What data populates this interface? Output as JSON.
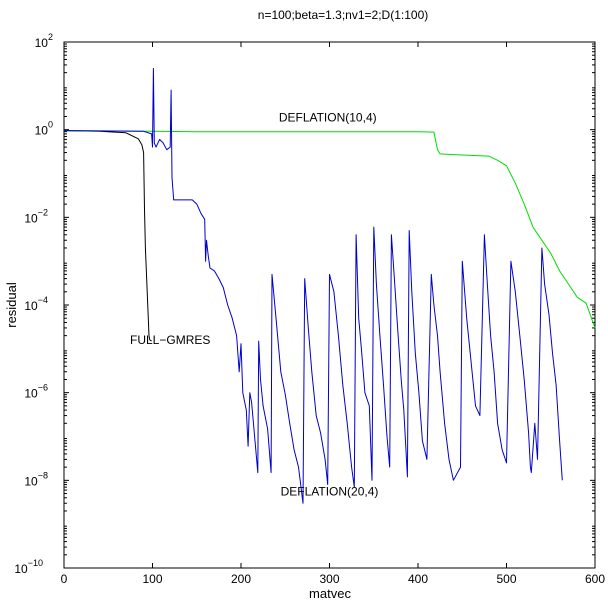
{
  "chart_data": {
    "type": "line",
    "title": "n=100;beta=1.3;nv1=2;D(1:100)",
    "xlabel": "matvec",
    "ylabel": "residual",
    "xlim": [
      0,
      600
    ],
    "ylim": [
      1e-10,
      100
    ],
    "yscale": "log",
    "grid": false,
    "x_ticks": [
      {
        "value": 0,
        "label": "0"
      },
      {
        "value": 100,
        "label": "100"
      },
      {
        "value": 200,
        "label": "200"
      },
      {
        "value": 300,
        "label": "300"
      },
      {
        "value": 400,
        "label": "400"
      },
      {
        "value": 500,
        "label": "500"
      },
      {
        "value": 600,
        "label": "600"
      }
    ],
    "y_ticks": [
      {
        "value": 100.0,
        "base": "10",
        "exp": "2"
      },
      {
        "value": 1.0,
        "base": "10",
        "exp": "0"
      },
      {
        "value": 0.01,
        "base": "10",
        "exp": "−2"
      },
      {
        "value": 0.0001,
        "base": "10",
        "exp": "−4"
      },
      {
        "value": 1e-06,
        "base": "10",
        "exp": "−6"
      },
      {
        "value": 1e-08,
        "base": "10",
        "exp": "−8"
      },
      {
        "value": 1e-10,
        "base": "10",
        "exp": "−10"
      }
    ],
    "annotations": [
      {
        "text": "DEFLATION(10,4)",
        "x": 298,
        "y": 1.9
      },
      {
        "text": "FULL−GMRES",
        "x": 120,
        "y": 1.6e-05
      },
      {
        "text": "DEFLATION(20,4)",
        "x": 300,
        "y": 5.5e-09
      }
    ],
    "series": [
      {
        "color": "#000000",
        "points": [
          [
            0,
            0.95
          ],
          [
            40,
            0.92
          ],
          [
            70,
            0.85
          ],
          [
            84,
            0.62
          ],
          [
            88,
            0.45
          ],
          [
            90,
            0.3
          ],
          [
            91,
            0.015
          ],
          [
            92,
            0.002
          ],
          [
            94,
            0.0002
          ],
          [
            96,
            2e-05
          ],
          [
            97,
            1.6e-05
          ],
          [
            99,
            1.5e-05
          ]
        ]
      },
      {
        "color": "#00dd00",
        "points": [
          [
            0,
            0.95
          ],
          [
            100,
            0.92
          ],
          [
            150,
            0.9
          ],
          [
            200,
            0.9
          ],
          [
            300,
            0.9
          ],
          [
            400,
            0.9
          ],
          [
            418,
            0.88
          ],
          [
            420,
            0.55
          ],
          [
            422,
            0.35
          ],
          [
            425,
            0.28
          ],
          [
            440,
            0.27
          ],
          [
            480,
            0.25
          ],
          [
            490,
            0.2
          ],
          [
            500,
            0.15
          ],
          [
            510,
            0.06
          ],
          [
            520,
            0.02
          ],
          [
            530,
            0.006
          ],
          [
            540,
            0.003
          ],
          [
            550,
            0.0015
          ],
          [
            560,
            0.0006
          ],
          [
            570,
            0.0003
          ],
          [
            580,
            0.00015
          ],
          [
            590,
            0.00011
          ],
          [
            600,
            3e-05
          ]
        ]
      },
      {
        "color": "#0000cc",
        "points": [
          [
            0,
            0.95
          ],
          [
            90,
            0.92
          ],
          [
            99,
            0.8
          ],
          [
            100,
            0.4
          ],
          [
            101,
            25
          ],
          [
            102,
            0.5
          ],
          [
            104,
            0.4
          ],
          [
            108,
            0.6
          ],
          [
            112,
            0.5
          ],
          [
            116,
            0.35
          ],
          [
            120,
            0.4
          ],
          [
            121,
            8
          ],
          [
            122,
            0.08
          ],
          [
            124,
            0.025
          ],
          [
            130,
            0.025
          ],
          [
            145,
            0.025
          ],
          [
            150,
            0.02
          ],
          [
            155,
            0.012
          ],
          [
            159,
            0.009
          ],
          [
            160,
            0.001
          ],
          [
            161,
            0.003
          ],
          [
            163,
            0.0013
          ],
          [
            165,
            0.0007
          ],
          [
            170,
            0.0006
          ],
          [
            175,
            0.0004
          ],
          [
            180,
            0.00025
          ],
          [
            185,
            0.0001
          ],
          [
            190,
            5e-05
          ],
          [
            195,
            2e-05
          ],
          [
            198,
            3e-06
          ],
          [
            200,
            1.3e-05
          ],
          [
            202,
            1e-06
          ],
          [
            206,
            4e-07
          ],
          [
            208,
            6e-08
          ],
          [
            210,
            1e-06
          ],
          [
            212,
            6e-07
          ],
          [
            215,
            1.2e-07
          ],
          [
            219,
            1.5e-08
          ],
          [
            220,
            1.5e-05
          ],
          [
            222,
            2e-06
          ],
          [
            225,
            5e-07
          ],
          [
            230,
            1.5e-07
          ],
          [
            234,
            1.5e-08
          ],
          [
            235,
            0.0005
          ],
          [
            240,
            4e-05
          ],
          [
            245,
            3e-06
          ],
          [
            250,
            9e-07
          ],
          [
            255,
            2e-07
          ],
          [
            260,
            5e-08
          ],
          [
            265,
            2e-08
          ],
          [
            270,
            3e-09
          ],
          [
            272,
            0.0004
          ],
          [
            276,
            3e-05
          ],
          [
            280,
            3e-06
          ],
          [
            285,
            3e-07
          ],
          [
            290,
            1.2e-07
          ],
          [
            295,
            3e-08
          ],
          [
            298,
            8e-09
          ],
          [
            300,
            0.0005
          ],
          [
            305,
            0.0002
          ],
          [
            310,
            2e-05
          ],
          [
            315,
            1.5e-06
          ],
          [
            320,
            2e-07
          ],
          [
            325,
            2e-08
          ],
          [
            328,
            7e-09
          ],
          [
            330,
            0.004
          ],
          [
            333,
            5e-05
          ],
          [
            336,
            1e-05
          ],
          [
            340,
            1e-06
          ],
          [
            345,
            5e-07
          ],
          [
            348,
            1e-08
          ],
          [
            350,
            0.006
          ],
          [
            353,
            0.0003
          ],
          [
            357,
            2e-05
          ],
          [
            361,
            1.5e-06
          ],
          [
            365,
            1e-07
          ],
          [
            368,
            2e-08
          ],
          [
            370,
            0.004
          ],
          [
            373,
            0.0005
          ],
          [
            377,
            3e-05
          ],
          [
            381,
            2e-06
          ],
          [
            384,
            4e-07
          ],
          [
            388,
            1.2e-08
          ],
          [
            390,
            0.005
          ],
          [
            393,
            0.0002
          ],
          [
            397,
            8e-06
          ],
          [
            401,
            1e-06
          ],
          [
            405,
            8e-08
          ],
          [
            410,
            3e-08
          ],
          [
            415,
            0.0005
          ],
          [
            418,
            0.0001
          ],
          [
            422,
            2e-05
          ],
          [
            425,
            3e-06
          ],
          [
            430,
            2e-07
          ],
          [
            435,
            3e-08
          ],
          [
            440,
            1e-08
          ],
          [
            448,
            2e-08
          ],
          [
            450,
            0.001
          ],
          [
            455,
            5e-05
          ],
          [
            460,
            5e-06
          ],
          [
            465,
            5e-07
          ],
          [
            470,
            3e-07
          ],
          [
            475,
            0.004
          ],
          [
            478,
            0.0004
          ],
          [
            482,
            2e-05
          ],
          [
            486,
            3e-06
          ],
          [
            490,
            2e-07
          ],
          [
            495,
            5e-08
          ],
          [
            500,
            2.5e-08
          ],
          [
            505,
            0.001
          ],
          [
            510,
            0.0002
          ],
          [
            515,
            2e-05
          ],
          [
            520,
            2e-06
          ],
          [
            525,
            1.2e-07
          ],
          [
            527,
            2e-08
          ],
          [
            528,
            1.5e-08
          ],
          [
            532,
            2e-07
          ],
          [
            535,
            3e-08
          ],
          [
            540,
            0.002
          ],
          [
            543,
            0.0003
          ],
          [
            548,
            6e-05
          ],
          [
            552,
            8e-06
          ],
          [
            556,
            1.5e-06
          ],
          [
            560,
            8e-08
          ],
          [
            563,
            1e-08
          ]
        ]
      }
    ]
  }
}
